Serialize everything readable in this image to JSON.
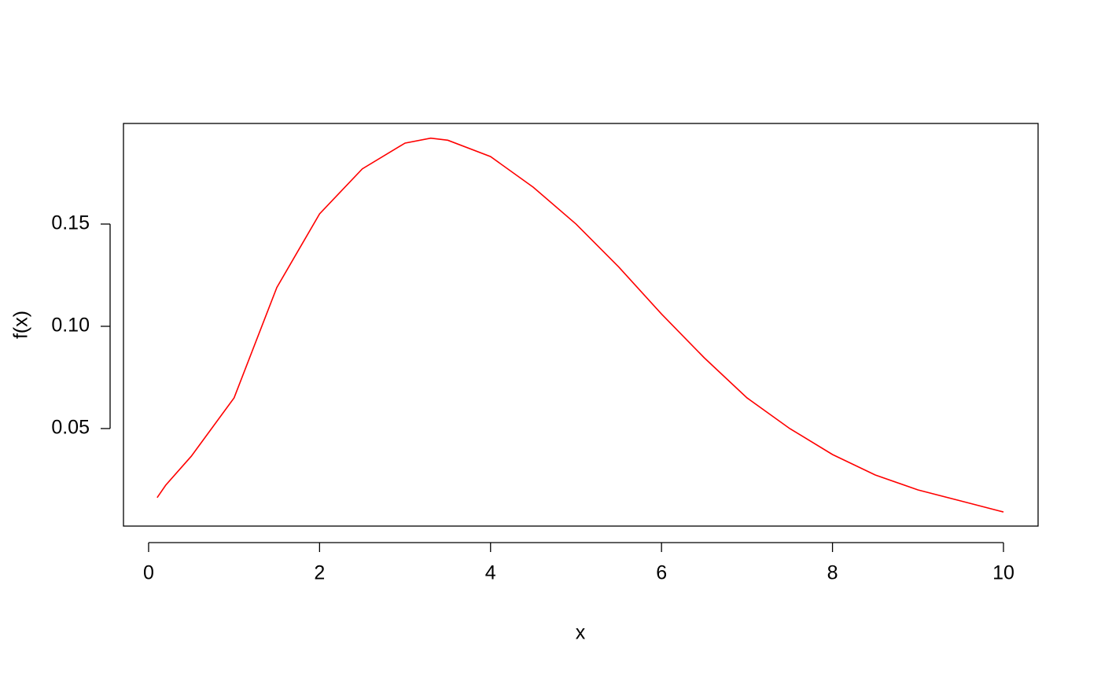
{
  "chart_data": {
    "type": "line",
    "x_label": "x",
    "y_label": "f(x)",
    "x": [
      0.1,
      0.2,
      0.5,
      1,
      1.5,
      2,
      2.5,
      3,
      3.3,
      3.5,
      4,
      4.5,
      5,
      5.5,
      6,
      6.5,
      7,
      7.5,
      8,
      8.5,
      9,
      9.5,
      10
    ],
    "series": [
      {
        "color": "#ff0000",
        "values": [
          0.0162,
          0.0223,
          0.0365,
          0.065,
          0.119,
          0.155,
          0.177,
          0.1896,
          0.192,
          0.191,
          0.183,
          0.168,
          0.15,
          0.129,
          0.106,
          0.0846,
          0.065,
          0.05,
          0.0373,
          0.0273,
          0.02,
          0.0146,
          0.0092
        ]
      }
    ],
    "xlim": [
      -0.294,
      10.405
    ],
    "ylim": [
      0.0023,
      0.1992
    ],
    "xticks": [
      0,
      2,
      4,
      6,
      8,
      10
    ],
    "yticks": [
      0.05,
      {
        "value": 0.1,
        "label": "0.10"
      },
      0.15
    ],
    "grid": false
  }
}
